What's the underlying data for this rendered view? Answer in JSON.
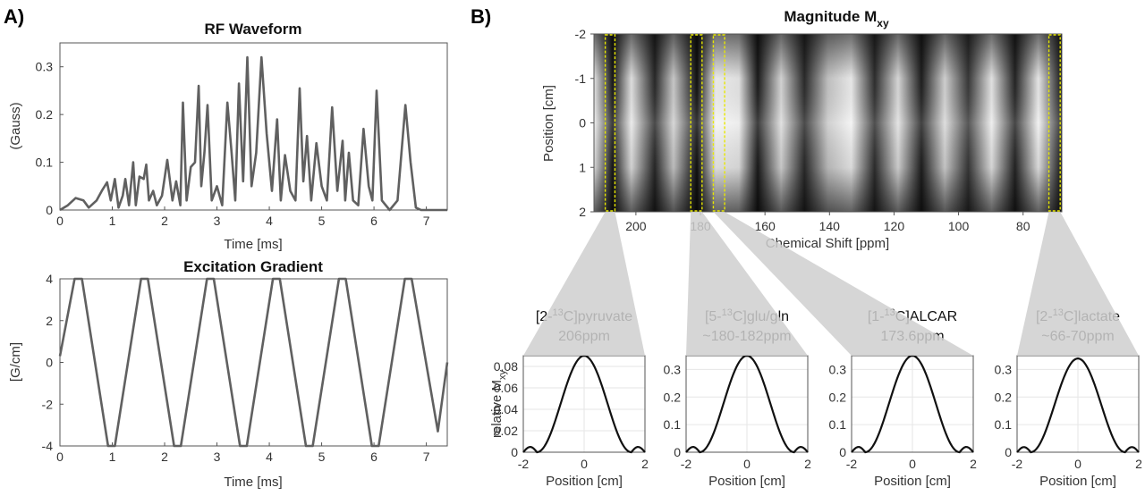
{
  "panels": {
    "a": "A)",
    "b": "B)"
  },
  "chart_data": [
    {
      "id": "rf",
      "type": "line",
      "title": "RF Waveform",
      "xlabel": "Time [ms]",
      "ylabel": "(Gauss)",
      "xlim": [
        0,
        7.4
      ],
      "ylim": [
        0,
        0.35
      ],
      "xticks": [
        0,
        1,
        2,
        3,
        4,
        5,
        6,
        7
      ],
      "yticks": [
        0,
        0.1,
        0.2,
        0.3
      ],
      "ytick_labels": [
        "0",
        "0.1",
        "0.2",
        "0.3"
      ],
      "color": "#606060",
      "x": [
        0,
        0.15,
        0.3,
        0.45,
        0.55,
        0.7,
        0.8,
        0.9,
        0.97,
        1.05,
        1.12,
        1.2,
        1.25,
        1.32,
        1.4,
        1.45,
        1.52,
        1.6,
        1.65,
        1.7,
        1.78,
        1.85,
        1.95,
        2.05,
        2.15,
        2.22,
        2.3,
        2.35,
        2.42,
        2.5,
        2.58,
        2.65,
        2.7,
        2.76,
        2.82,
        2.9,
        3.0,
        3.1,
        3.2,
        3.28,
        3.35,
        3.42,
        3.5,
        3.58,
        3.66,
        3.75,
        3.85,
        3.95,
        4.05,
        4.15,
        4.22,
        4.3,
        4.4,
        4.5,
        4.58,
        4.65,
        4.72,
        4.8,
        4.9,
        5.0,
        5.1,
        5.2,
        5.3,
        5.4,
        5.45,
        5.52,
        5.6,
        5.7,
        5.8,
        5.9,
        5.97,
        6.05,
        6.15,
        6.3,
        6.45,
        6.6,
        6.7,
        6.8,
        6.9,
        7.1,
        7.4
      ],
      "y": [
        0,
        0.01,
        0.025,
        0.02,
        0.005,
        0.02,
        0.04,
        0.058,
        0.02,
        0.065,
        0.005,
        0.03,
        0.065,
        0.01,
        0.1,
        0.01,
        0.07,
        0.065,
        0.095,
        0.02,
        0.04,
        0.01,
        0.03,
        0.105,
        0.02,
        0.06,
        0.01,
        0.225,
        0.02,
        0.09,
        0.1,
        0.26,
        0.05,
        0.12,
        0.22,
        0.02,
        0.05,
        0.01,
        0.225,
        0.12,
        0.02,
        0.265,
        0.06,
        0.32,
        0.05,
        0.12,
        0.32,
        0.16,
        0.04,
        0.19,
        0.02,
        0.115,
        0.04,
        0.02,
        0.255,
        0.06,
        0.155,
        0.02,
        0.14,
        0.05,
        0.02,
        0.215,
        0.04,
        0.145,
        0.02,
        0.12,
        0.02,
        0.01,
        0.17,
        0.05,
        0.02,
        0.25,
        0.02,
        0.0,
        0.02,
        0.22,
        0.1,
        0.005,
        0.0,
        0.0,
        0.0
      ]
    },
    {
      "id": "grad",
      "type": "line",
      "title": "Excitation Gradient",
      "xlabel": "Time [ms]",
      "ylabel": "[G/cm]",
      "xlim": [
        0,
        7.4
      ],
      "ylim": [
        -4,
        4
      ],
      "xticks": [
        0,
        1,
        2,
        3,
        4,
        5,
        6,
        7
      ],
      "yticks": [
        -4,
        -2,
        0,
        2,
        4
      ],
      "color": "#606060",
      "x": [
        0,
        0.28,
        0.42,
        0.92,
        1.05,
        1.55,
        1.68,
        2.18,
        2.31,
        2.81,
        2.94,
        3.44,
        3.57,
        4.07,
        4.2,
        4.7,
        4.83,
        5.33,
        5.46,
        5.96,
        6.09,
        6.59,
        6.72,
        7.22,
        7.4
      ],
      "y": [
        0.3,
        4,
        4,
        -4,
        -4,
        4,
        4,
        -4,
        -4,
        4,
        4,
        -4,
        -4,
        4,
        4,
        -4,
        -4,
        4,
        4,
        -4,
        -4,
        4,
        4,
        -3.3,
        0
      ]
    },
    {
      "id": "heatmap",
      "type": "heatmap",
      "title": "Magnitude M",
      "title_sub": "xy",
      "xlabel": "Chemical Shift [ppm]",
      "ylabel": "Position [cm]",
      "xlim": [
        213,
        68
      ],
      "ylim": [
        -2,
        2
      ],
      "xticks": [
        200,
        180,
        160,
        140,
        120,
        100,
        80
      ],
      "yticks": [
        -2,
        -1,
        0,
        1,
        2
      ],
      "highlight_bands_ppm": [
        [
          209.5,
          206.5
        ],
        [
          183,
          179.5
        ],
        [
          176,
          172.5
        ],
        [
          72,
          68.5
        ]
      ],
      "highlight_color": "#e8e800"
    },
    {
      "id": "pyruvate",
      "type": "line",
      "label_line1": "[2-",
      "label_sup": "13",
      "label_line1_rest": "C]pyruvate",
      "label_line2": "206ppm",
      "xlabel": "Position [cm]",
      "ylabel": "relative M",
      "ylabel_sub": "xy",
      "xlim": [
        -2,
        2
      ],
      "ylim": [
        0,
        0.09
      ],
      "xticks": [
        -2,
        0,
        2
      ],
      "yticks": [
        0,
        0.02,
        0.04,
        0.06,
        0.08
      ],
      "ytick_labels": [
        "0",
        "0.02",
        "0.04",
        "0.06",
        "0.08"
      ],
      "peak": 0.09
    },
    {
      "id": "glu",
      "type": "line",
      "label_line1": "[5-",
      "label_sup": "13",
      "label_line1_rest": "C]glu/gln",
      "label_line2": "~180-182ppm",
      "xlabel": "Position [cm]",
      "xlim": [
        -2,
        2
      ],
      "ylim": [
        0,
        0.35
      ],
      "xticks": [
        -2,
        0,
        2
      ],
      "yticks": [
        0,
        0.1,
        0.2,
        0.3
      ],
      "ytick_labels": [
        "0",
        "0.1",
        "0.2",
        "0.3"
      ],
      "peak": 0.35
    },
    {
      "id": "alcar",
      "type": "line",
      "label_line1": "[1-",
      "label_sup": "13",
      "label_line1_rest": "C]ALCAR",
      "label_line2": "173.6ppm",
      "xlabel": "Position [cm]",
      "xlim": [
        -2,
        2
      ],
      "ylim": [
        0,
        0.35
      ],
      "xticks": [
        -2,
        0,
        2
      ],
      "yticks": [
        0,
        0.1,
        0.2,
        0.3
      ],
      "ytick_labels": [
        "0",
        "0.1",
        "0.2",
        "0.3"
      ],
      "peak": 0.35
    },
    {
      "id": "lactate",
      "type": "line",
      "label_line1": "[2-",
      "label_sup": "13",
      "label_line1_rest": "C]lactate",
      "label_line2": "~66-70ppm",
      "xlabel": "Position [cm]",
      "xlim": [
        -2,
        2
      ],
      "ylim": [
        0,
        0.35
      ],
      "xticks": [
        -2,
        0,
        2
      ],
      "yticks": [
        0,
        0.1,
        0.2,
        0.3
      ],
      "ytick_labels": [
        "0",
        "0.1",
        "0.2",
        "0.3"
      ],
      "peak": 0.34
    }
  ]
}
